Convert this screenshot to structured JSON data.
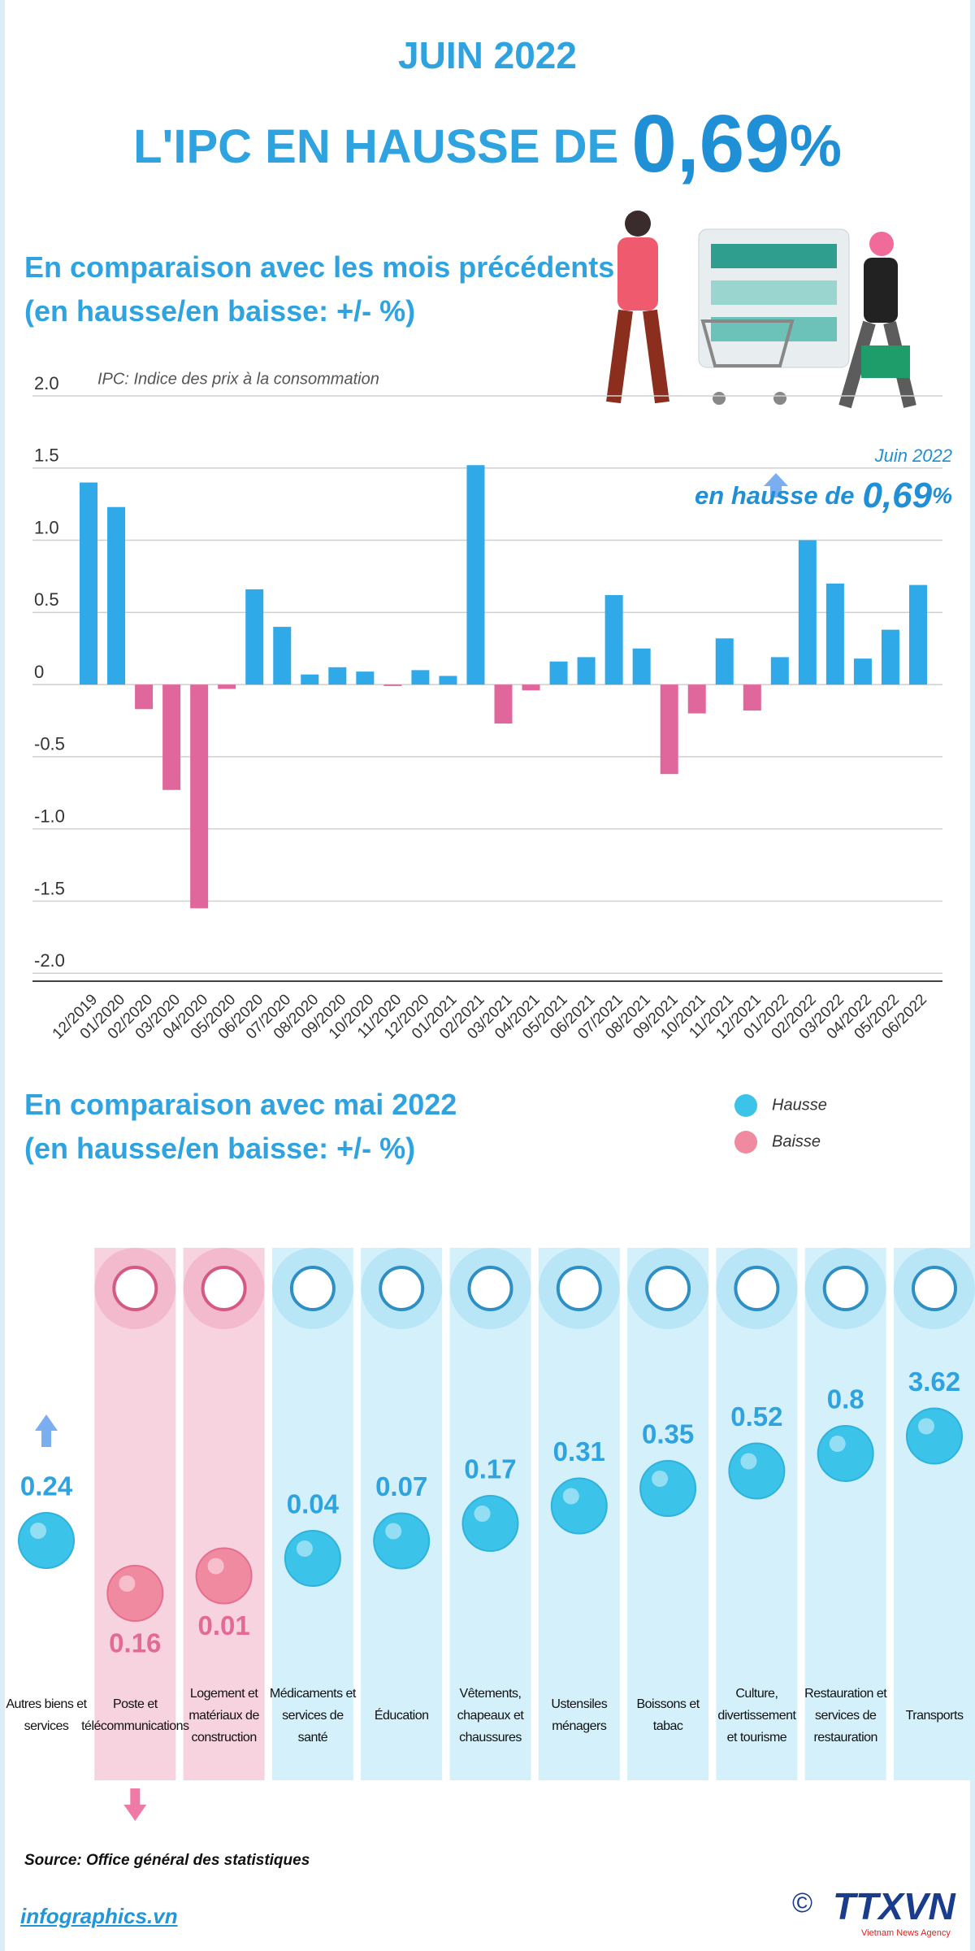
{
  "header": {
    "date": "JUIN 2022",
    "title": "L'IPC EN HAUSSE DE",
    "highlight": "0,69",
    "unit": "%"
  },
  "chart_data": [
    {
      "type": "bar",
      "title": "En comparaison avec les mois précédents (en hausse/en baisse: +/- %)",
      "note": "IPC: Indice des prix à la consommation",
      "categories": [
        "12/2019",
        "01/2020",
        "02/2020",
        "03/2020",
        "04/2020",
        "05/2020",
        "06/2020",
        "07/2020",
        "08/2020",
        "09/2020",
        "10/2020",
        "11/2020",
        "12/2020",
        "01/2021",
        "02/2021",
        "03/2021",
        "04/2021",
        "05/2021",
        "06/2021",
        "07/2021",
        "08/2021",
        "09/2021",
        "10/2021",
        "11/2021",
        "12/2021",
        "01/2022",
        "02/2022",
        "03/2022",
        "04/2022",
        "05/2022",
        "06/2022"
      ],
      "values": [
        1.4,
        1.23,
        -0.17,
        -0.73,
        -1.55,
        -0.03,
        0.66,
        0.4,
        0.07,
        0.12,
        0.09,
        -0.01,
        0.1,
        0.06,
        1.52,
        -0.27,
        -0.04,
        0.16,
        0.19,
        0.62,
        0.25,
        -0.62,
        -0.2,
        0.32,
        -0.18,
        0.19,
        1.0,
        0.7,
        0.18,
        0.38,
        0.69
      ],
      "up_color": "#2fa9e8",
      "down_color": "#e0679b",
      "ylim": [
        -2.1,
        2.0
      ],
      "yticks": [
        {
          "value": 2,
          "label": "2.0"
        },
        1.5,
        {
          "value": 1,
          "label": "1.0"
        },
        0.5,
        0,
        -0.5,
        {
          "value": -1,
          "label": "-1.0"
        },
        -1.5,
        {
          "value": -2,
          "label": "-2.0"
        }
      ],
      "grid": true,
      "annotation": {
        "date": "Juin 2022",
        "text": "en hausse de",
        "value": "0,69",
        "unit": "%"
      }
    },
    {
      "type": "dot",
      "title": "En comparaison avec mai 2022 (en hausse/en baisse: +/- %)",
      "legend": [
        {
          "name": "Hausse",
          "color": "#3cc3ea"
        },
        {
          "name": "Baisse",
          "color": "#f08aa0"
        }
      ],
      "categories": [
        "Autres biens et services",
        "Poste et télécommunications",
        "Logement et matériaux de construction",
        "Médicaments et services de santé",
        "Éducation",
        "Vêtements, chapeaux et chaussures",
        "Ustensiles ménagers",
        "Boissons et tabac",
        "Culture, divertissement et tourisme",
        "Restauration et services de restauration",
        "Transports"
      ],
      "values": [
        0.24,
        -0.16,
        -0.01,
        0.04,
        0.07,
        0.17,
        0.31,
        0.35,
        0.52,
        0.8,
        3.62
      ],
      "value_labels": [
        "0.24",
        "0.16",
        "0.01",
        "0.04",
        "0.07",
        "0.17",
        "0.31",
        "0.35",
        "0.52",
        "0.8",
        "3.62"
      ]
    }
  ],
  "footer": {
    "source": "Source: Office général des statistiques",
    "site": "infographics.vn",
    "logo_symbol": "©",
    "logo_name": "TTXVN",
    "logo_tagline": "Vietnam News Agency"
  }
}
